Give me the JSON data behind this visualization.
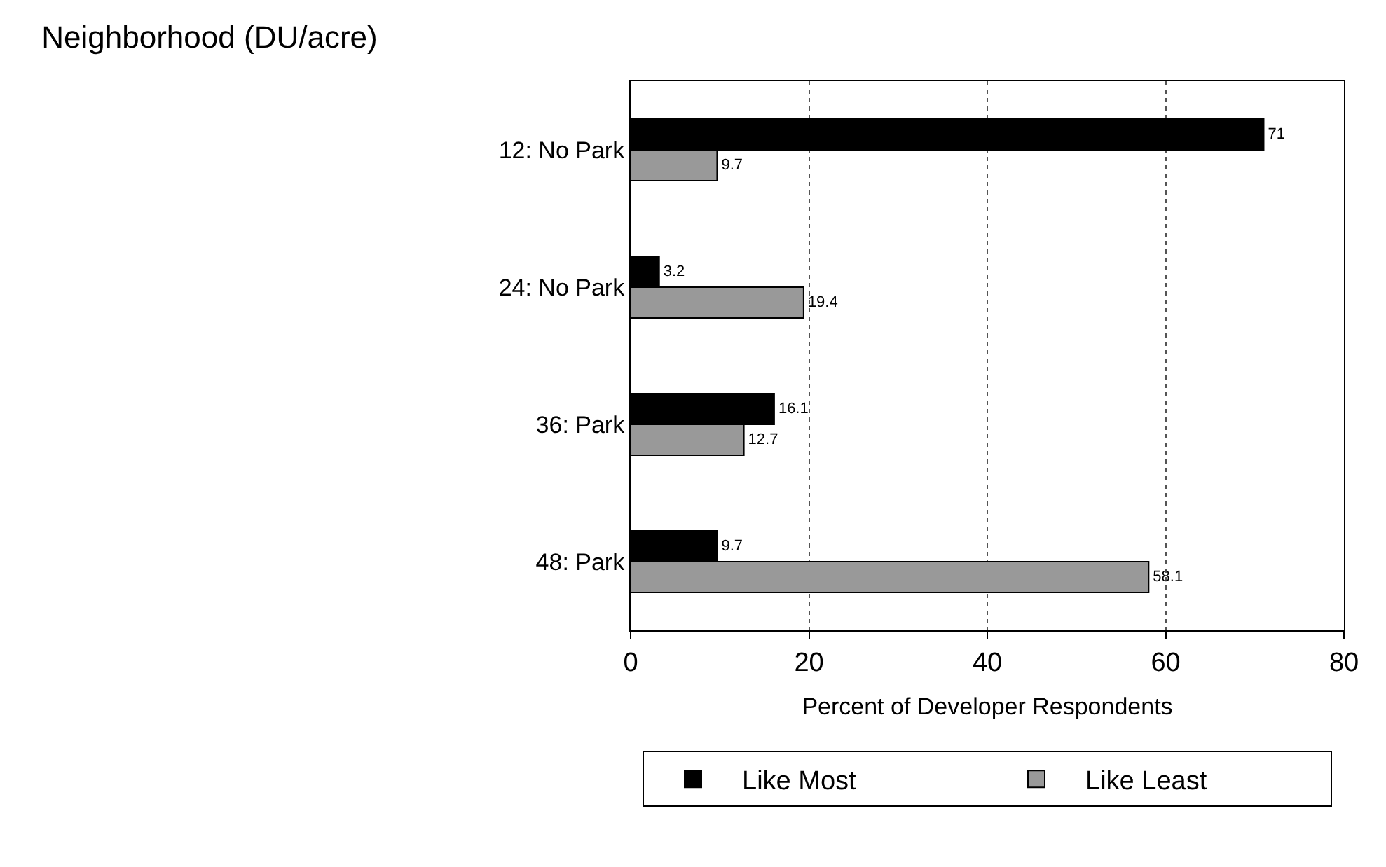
{
  "chart_data": {
    "type": "bar",
    "orientation": "horizontal",
    "title": "Neighborhood (DU/acre)",
    "xlabel": "Percent of Developer Respondents",
    "categories": [
      "12: No Park",
      "24: No Park",
      "36: Park",
      "48: Park"
    ],
    "series": [
      {
        "name": "Like Most",
        "color": "#000000",
        "values": [
          71,
          3.2,
          16.1,
          9.7
        ]
      },
      {
        "name": "Like Least",
        "color": "#999999",
        "values": [
          9.7,
          19.4,
          12.7,
          58.1
        ]
      }
    ],
    "xlim": [
      0,
      80
    ],
    "xticks": [
      0,
      20,
      40,
      60,
      80
    ],
    "grid": "x",
    "line_style": "dotted",
    "legend": "bottom",
    "data_labels": true
  }
}
